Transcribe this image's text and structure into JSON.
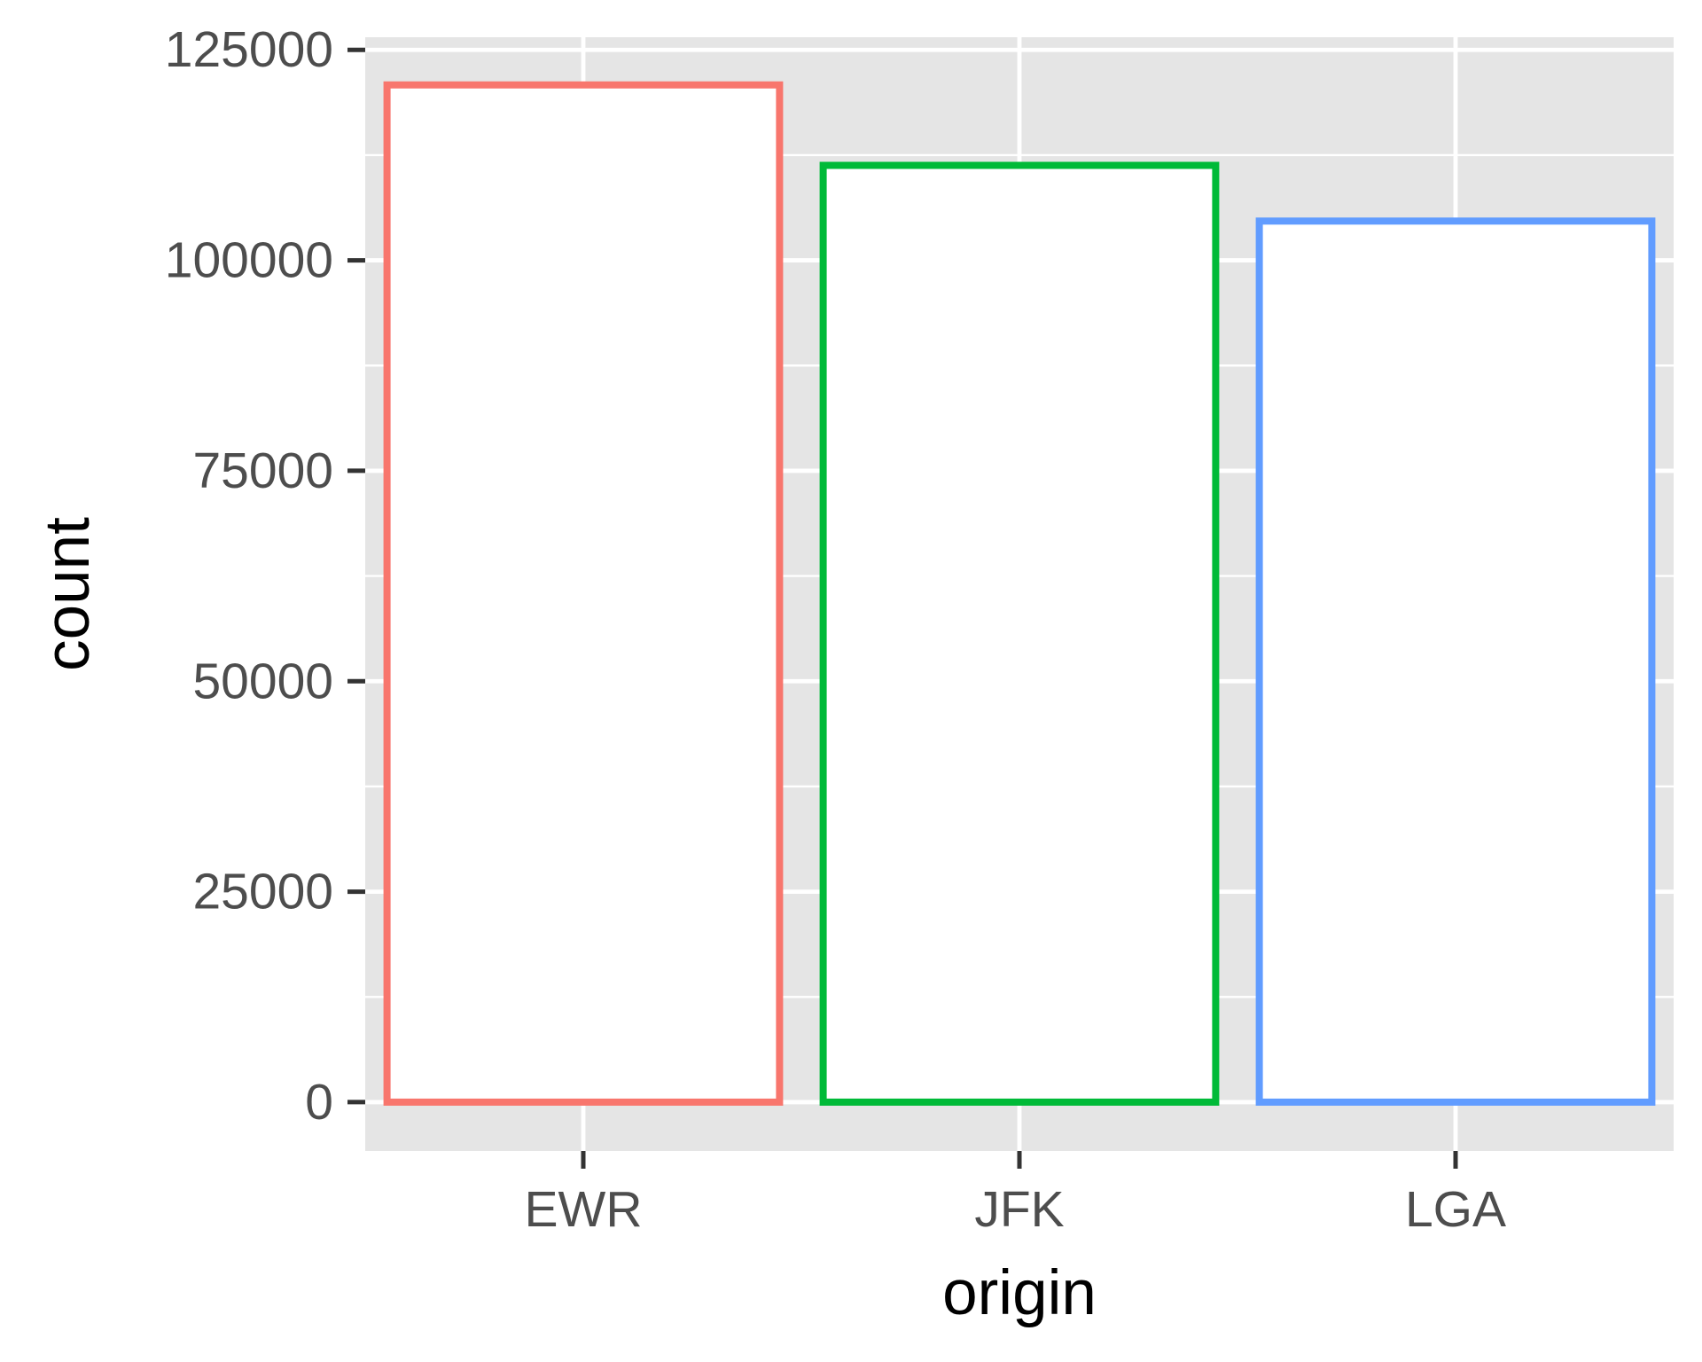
{
  "chart_data": {
    "type": "bar",
    "title": "",
    "xlabel": "origin",
    "ylabel": "count",
    "categories": [
      "EWR",
      "JFK",
      "LGA"
    ],
    "values": [
      120835,
      111279,
      104662
    ],
    "colors": [
      "#F8766D",
      "#00BA38",
      "#619CFF"
    ],
    "fill": "#FFFFFF",
    "ylim": [
      -5800,
      126500
    ],
    "yticks": [
      0,
      25000,
      50000,
      75000,
      100000,
      125000
    ],
    "ytick_labels": [
      "0",
      "25000",
      "50000",
      "75000",
      "100000",
      "125000"
    ],
    "panel_background": "#E5E5E5",
    "grid": true,
    "legend": "none"
  }
}
